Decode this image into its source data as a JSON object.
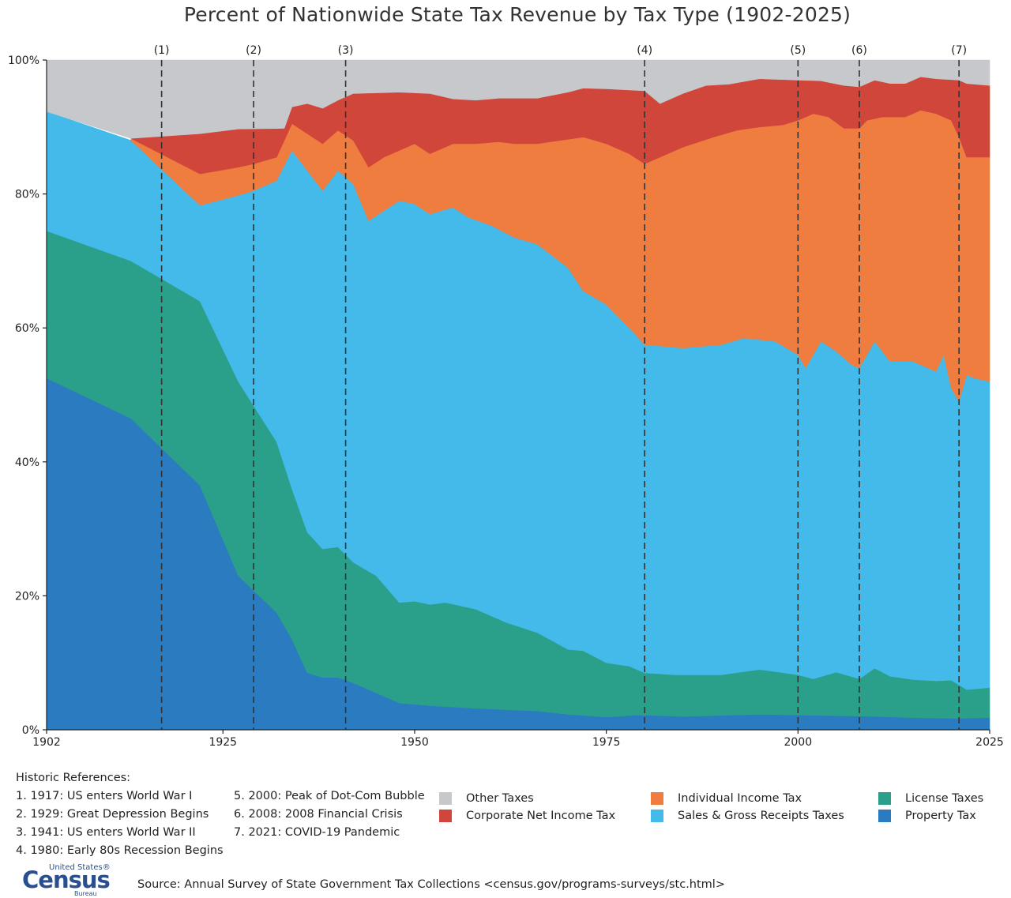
{
  "chart_data": {
    "type": "area",
    "stacked": true,
    "title": "Percent of Nationwide State Tax Revenue by Tax Type (1902-2025)",
    "xlim": [
      1902,
      2025
    ],
    "ylim": [
      0,
      100
    ],
    "x_ticks": [
      1902,
      1925,
      1950,
      1975,
      2000,
      2025
    ],
    "y_ticks": [
      0,
      20,
      40,
      60,
      80,
      100
    ],
    "y_tick_suffix": "%",
    "grid": false,
    "legend_placement": "bottom-right",
    "series": [
      {
        "name": "Property Tax",
        "color": "#2a7bbf",
        "shape": "band",
        "lower": "zero",
        "points": [
          [
            1902,
            52.5
          ],
          [
            1913,
            46.5
          ],
          [
            1922,
            36.5
          ],
          [
            1927,
            23
          ],
          [
            1932,
            17.5
          ],
          [
            1934,
            13.5
          ],
          [
            1936,
            8.5
          ],
          [
            1938,
            7.8
          ],
          [
            1940,
            7.8
          ],
          [
            1942,
            7
          ],
          [
            1946,
            5
          ],
          [
            1948,
            4
          ],
          [
            1952,
            3.6
          ],
          [
            1958,
            3.2
          ],
          [
            1966,
            2.8
          ],
          [
            1970,
            2.3
          ],
          [
            1975,
            1.9
          ],
          [
            1979,
            2.2
          ],
          [
            1985,
            2
          ],
          [
            1995,
            2.3
          ],
          [
            2000,
            2.2
          ],
          [
            2010,
            2
          ],
          [
            2015,
            1.8
          ],
          [
            2021,
            1.7
          ],
          [
            2025,
            1.8
          ]
        ]
      },
      {
        "name": "License Taxes",
        "color": "#2aa08b",
        "shape": "band",
        "lower": "Property Tax",
        "points": [
          [
            1902,
            74.5
          ],
          [
            1913,
            70
          ],
          [
            1922,
            64
          ],
          [
            1927,
            52
          ],
          [
            1932,
            43
          ],
          [
            1934,
            36
          ],
          [
            1936,
            29.5
          ],
          [
            1938,
            27
          ],
          [
            1940,
            27.3
          ],
          [
            1942,
            25
          ],
          [
            1945,
            23
          ],
          [
            1948,
            19
          ],
          [
            1950,
            19.2
          ],
          [
            1952,
            18.7
          ],
          [
            1954,
            19
          ],
          [
            1958,
            18
          ],
          [
            1960,
            17
          ],
          [
            1962,
            16
          ],
          [
            1966,
            14.5
          ],
          [
            1970,
            12
          ],
          [
            1972,
            11.8
          ],
          [
            1975,
            10
          ],
          [
            1978,
            9.5
          ],
          [
            1980,
            8.5
          ],
          [
            1984,
            8.2
          ],
          [
            1990,
            8.2
          ],
          [
            1995,
            9
          ],
          [
            2000,
            8.2
          ],
          [
            2002,
            7.6
          ],
          [
            2005,
            8.6
          ],
          [
            2008,
            7.6
          ],
          [
            2010,
            9.2
          ],
          [
            2012,
            8
          ],
          [
            2015,
            7.5
          ],
          [
            2018,
            7.3
          ],
          [
            2020,
            7.4
          ],
          [
            2022,
            6
          ],
          [
            2025,
            6.3
          ]
        ]
      },
      {
        "name": "Sales & Gross Receipts Taxes",
        "color": "#43baea",
        "shape": "band",
        "lower": "License Taxes",
        "points": [
          [
            1902,
            92.3
          ],
          [
            1913,
            88
          ],
          [
            1922,
            78.3
          ],
          [
            1927,
            79.8
          ],
          [
            1929,
            80.5
          ],
          [
            1932,
            82
          ],
          [
            1934,
            86.5
          ],
          [
            1936,
            83.5
          ],
          [
            1938,
            80.5
          ],
          [
            1940,
            83.5
          ],
          [
            1942,
            81.5
          ],
          [
            1944,
            76
          ],
          [
            1946,
            77.5
          ],
          [
            1948,
            79
          ],
          [
            1950,
            78.5
          ],
          [
            1952,
            77
          ],
          [
            1955,
            78
          ],
          [
            1957,
            76.5
          ],
          [
            1960,
            75.3
          ],
          [
            1963,
            73.5
          ],
          [
            1966,
            72.5
          ],
          [
            1970,
            69
          ],
          [
            1972,
            65.5
          ],
          [
            1975,
            63.5
          ],
          [
            1978,
            60
          ],
          [
            1980,
            57.5
          ],
          [
            1985,
            57
          ],
          [
            1990,
            57.5
          ],
          [
            1993,
            58.5
          ],
          [
            1997,
            58
          ],
          [
            2000,
            56
          ],
          [
            2001,
            54
          ],
          [
            2003,
            58
          ],
          [
            2005,
            56.5
          ],
          [
            2007,
            54.5
          ],
          [
            2008,
            54
          ],
          [
            2010,
            58
          ],
          [
            2012,
            55
          ],
          [
            2015,
            55
          ],
          [
            2018,
            53.5
          ],
          [
            2019,
            56
          ],
          [
            2020,
            51
          ],
          [
            2021,
            49
          ],
          [
            2022,
            53
          ],
          [
            2023,
            52.5
          ],
          [
            2025,
            52
          ]
        ]
      },
      {
        "name": "Individual Income Tax",
        "color": "#ef7d40",
        "shape": "band",
        "lower": "Sales & Gross Receipts Taxes",
        "points": [
          [
            1913,
            88.3
          ],
          [
            1922,
            83
          ],
          [
            1927,
            84
          ],
          [
            1929,
            84.5
          ],
          [
            1932,
            85.5
          ],
          [
            1934,
            90.5
          ],
          [
            1936,
            89
          ],
          [
            1938,
            87.5
          ],
          [
            1940,
            89.5
          ],
          [
            1942,
            88
          ],
          [
            1944,
            84
          ],
          [
            1946,
            85.5
          ],
          [
            1950,
            87.5
          ],
          [
            1952,
            86
          ],
          [
            1955,
            87.5
          ],
          [
            1958,
            87.5
          ],
          [
            1961,
            87.8
          ],
          [
            1963,
            87.5
          ],
          [
            1966,
            87.5
          ],
          [
            1969,
            88
          ],
          [
            1972,
            88.5
          ],
          [
            1975,
            87.5
          ],
          [
            1978,
            86
          ],
          [
            1980,
            84.5
          ],
          [
            1982,
            85.5
          ],
          [
            1985,
            87
          ],
          [
            1989,
            88.5
          ],
          [
            1992,
            89.5
          ],
          [
            1995,
            90
          ],
          [
            1998,
            90.3
          ],
          [
            2000,
            91
          ],
          [
            2002,
            92
          ],
          [
            2004,
            91.5
          ],
          [
            2006,
            89.8
          ],
          [
            2008,
            89.8
          ],
          [
            2009,
            91
          ],
          [
            2011,
            91.5
          ],
          [
            2014,
            91.5
          ],
          [
            2016,
            92.5
          ],
          [
            2018,
            92
          ],
          [
            2020,
            91
          ],
          [
            2021,
            88.5
          ],
          [
            2022,
            85.5
          ],
          [
            2025,
            85.5
          ]
        ]
      },
      {
        "name": "Corporate Net Income Tax",
        "color": "#d0463b",
        "shape": "band",
        "lower": "Individual Income Tax",
        "points": [
          [
            1913,
            88.3
          ],
          [
            1922,
            89
          ],
          [
            1927,
            89.7
          ],
          [
            1933,
            89.8
          ],
          [
            1934,
            93
          ],
          [
            1936,
            93.5
          ],
          [
            1938,
            92.8
          ],
          [
            1940,
            94
          ],
          [
            1942,
            95
          ],
          [
            1948,
            95.2
          ],
          [
            1952,
            95
          ],
          [
            1955,
            94.2
          ],
          [
            1958,
            94
          ],
          [
            1961,
            94.3
          ],
          [
            1966,
            94.3
          ],
          [
            1970,
            95.2
          ],
          [
            1972,
            95.8
          ],
          [
            1975,
            95.7
          ],
          [
            1980,
            95.4
          ],
          [
            1982,
            93.5
          ],
          [
            1985,
            95
          ],
          [
            1988,
            96.2
          ],
          [
            1991,
            96.4
          ],
          [
            1995,
            97.2
          ],
          [
            2000,
            97
          ],
          [
            2003,
            96.9
          ],
          [
            2006,
            96.2
          ],
          [
            2008,
            96
          ],
          [
            2010,
            97
          ],
          [
            2012,
            96.5
          ],
          [
            2014,
            96.5
          ],
          [
            2016,
            97.5
          ],
          [
            2018,
            97.2
          ],
          [
            2021,
            97
          ],
          [
            2022,
            96.5
          ],
          [
            2025,
            96.2
          ]
        ]
      },
      {
        "name": "Other Taxes",
        "color": "#c6c8cb",
        "shape": "band",
        "lower": "Corporate Net Income Tax",
        "points": [
          [
            1902,
            100
          ],
          [
            2025,
            100
          ]
        ]
      }
    ],
    "events": [
      {
        "label": "(1)",
        "x": 1917
      },
      {
        "label": "(2)",
        "x": 1929
      },
      {
        "label": "(3)",
        "x": 1941
      },
      {
        "label": "(4)",
        "x": 1980
      },
      {
        "label": "(5)",
        "x": 2000
      },
      {
        "label": "(6)",
        "x": 2008
      },
      {
        "label": "(7)",
        "x": 2021
      }
    ]
  },
  "historic": {
    "heading": "Historic References:",
    "col1": [
      "1. 1917: US enters World War I",
      "2. 1929: Great Depression Begins",
      "3. 1941: US enters World War II",
      "4. 1980: Early 80s Recession Begins"
    ],
    "col2": [
      "5. 2000: Peak of Dot-Com Bubble",
      "6. 2008: 2008 Financial Crisis",
      "7. 2021: COVID-19 Pandemic"
    ]
  },
  "legend": [
    {
      "label": "Other Taxes",
      "color": "#c6c8cb"
    },
    {
      "label": "Corporate Net Income Tax",
      "color": "#d0463b"
    },
    {
      "label": "Individual Income Tax",
      "color": "#ef7d40"
    },
    {
      "label": "Sales & Gross Receipts Taxes",
      "color": "#43baea"
    },
    {
      "label": "License Taxes",
      "color": "#2aa08b"
    },
    {
      "label": "Property Tax",
      "color": "#2a7bbf"
    }
  ],
  "logo": {
    "top": "United States®",
    "main": "Census",
    "bottom": "Bureau"
  },
  "source": "Source: Annual Survey of State Government Tax Collections <census.gov/programs-surveys/stc.html>"
}
